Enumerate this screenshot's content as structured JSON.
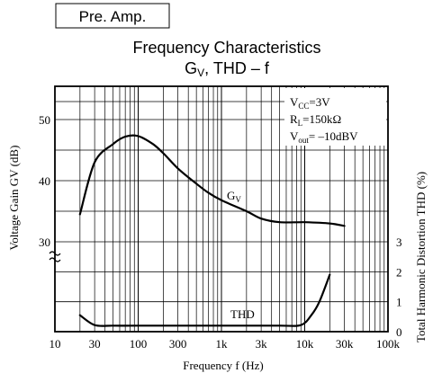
{
  "header": {
    "badge": "Pre. Amp.",
    "title": "Frequency Characteristics",
    "subtitle": "G",
    "subtitle_sub": "V",
    "subtitle_rest": ", THD – f"
  },
  "conditions": {
    "vcc_main": "V",
    "vcc_sub": "CC",
    "vcc_val": "=3V",
    "rl_main": "R",
    "rl_sub": "L",
    "rl_val": "=150kΩ",
    "vout_main": "V",
    "vout_sub": "out",
    "vout_val": "= –10dBV"
  },
  "chart_data": {
    "type": "line",
    "title": "Frequency Characteristics",
    "subtitle": "GV, THD – f",
    "x_label": "Frequency f (Hz)",
    "y_label_left": "Voltage Gain GV (dB)",
    "y_label_right": "Total Harmonic Distortion THD (%)",
    "x_scale": "log",
    "x_range": [
      10,
      100000
    ],
    "x_ticks": [
      {
        "value": 10,
        "label": "10"
      },
      {
        "value": 30,
        "label": "30"
      },
      {
        "value": 100,
        "label": "100"
      },
      {
        "value": 300,
        "label": "300"
      },
      {
        "value": 1000,
        "label": "1k"
      },
      {
        "value": 3000,
        "label": "3k"
      },
      {
        "value": 10000,
        "label": "10k"
      },
      {
        "value": 30000,
        "label": "30k"
      },
      {
        "value": 100000,
        "label": "100k"
      }
    ],
    "y_left_ticks": [
      {
        "value": 50,
        "label": "50"
      },
      {
        "value": 40,
        "label": "40"
      },
      {
        "value": 30,
        "label": "30"
      }
    ],
    "y_right_ticks": [
      {
        "value": 3,
        "label": "3"
      },
      {
        "value": 2,
        "label": "2"
      },
      {
        "value": 1,
        "label": "1"
      },
      {
        "value": 0,
        "label": "0"
      }
    ],
    "grid": true,
    "series": [
      {
        "name": "GV",
        "axis": "left",
        "unit": "dB",
        "points": [
          [
            20,
            34.5
          ],
          [
            30,
            43
          ],
          [
            50,
            46
          ],
          [
            70,
            47.2
          ],
          [
            100,
            47.3
          ],
          [
            150,
            46
          ],
          [
            200,
            44.5
          ],
          [
            300,
            42
          ],
          [
            500,
            39.5
          ],
          [
            700,
            38
          ],
          [
            1000,
            36.8
          ],
          [
            2000,
            35
          ],
          [
            3000,
            33.8
          ],
          [
            5000,
            33.2
          ],
          [
            10000,
            33.2
          ],
          [
            20000,
            33
          ],
          [
            30000,
            32.6
          ]
        ]
      },
      {
        "name": "THD",
        "axis": "right",
        "unit": "%",
        "points": [
          [
            20,
            0.55
          ],
          [
            30,
            0.22
          ],
          [
            50,
            0.2
          ],
          [
            100,
            0.2
          ],
          [
            1000,
            0.2
          ],
          [
            5000,
            0.2
          ],
          [
            9000,
            0.22
          ],
          [
            12000,
            0.55
          ],
          [
            15000,
            1.0
          ],
          [
            20000,
            1.9
          ]
        ]
      }
    ],
    "annotations": [
      {
        "text": "G",
        "sub": "V",
        "series": "GV"
      },
      {
        "text": "THD",
        "series": "THD"
      }
    ]
  }
}
